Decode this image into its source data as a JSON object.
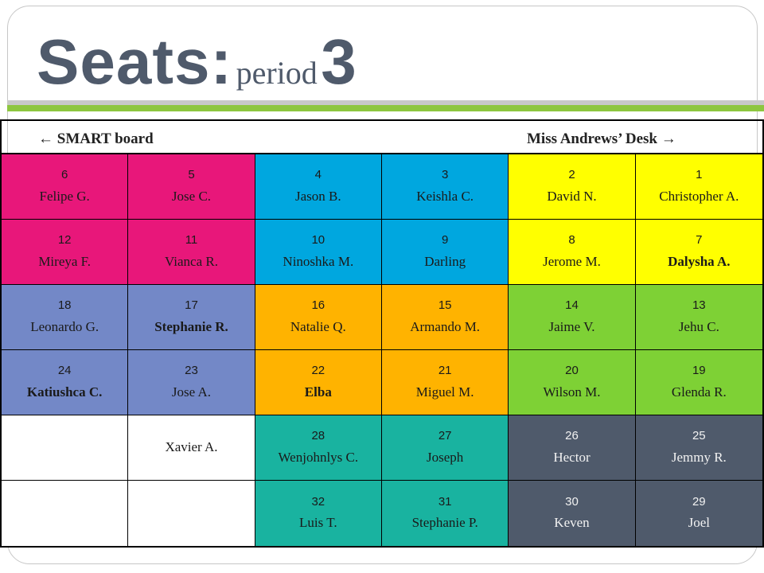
{
  "title": {
    "word": "Seats:",
    "sub": "period",
    "number": "3"
  },
  "front": {
    "left": "← SMART board",
    "right": "Miss Andrews’ Desk →"
  },
  "colors": {
    "pink": "#e8177a",
    "blue": "#00a7df",
    "yellow": "#ffff00",
    "periwinkle": "#7388c7",
    "orange": "#ffb300",
    "green": "#7ed135",
    "teal": "#19b3a0",
    "slate": "#4f5a6b",
    "white": "#ffffff"
  },
  "rows": [
    [
      {
        "num": "6",
        "name": "Felipe G.",
        "color": "pink"
      },
      {
        "num": "5",
        "name": "Jose C.",
        "color": "pink"
      },
      {
        "num": "4",
        "name": "Jason B.",
        "color": "blue"
      },
      {
        "num": "3",
        "name": "Keishla C.",
        "color": "blue"
      },
      {
        "num": "2",
        "name": "David N.",
        "color": "yellow"
      },
      {
        "num": "1",
        "name": "Christopher  A.",
        "color": "yellow"
      }
    ],
    [
      {
        "num": "12",
        "name": "Mireya F.",
        "color": "pink"
      },
      {
        "num": "11",
        "name": "Vianca R.",
        "color": "pink"
      },
      {
        "num": "10",
        "name": "Ninoshka M.",
        "color": "blue"
      },
      {
        "num": "9",
        "name": "Darling",
        "color": "blue"
      },
      {
        "num": "8",
        "name": "Jerome M.",
        "color": "yellow"
      },
      {
        "num": "7",
        "name": "Dalysha A.",
        "color": "yellow",
        "bold": true
      }
    ],
    [
      {
        "num": "18",
        "name": "Leonardo G.",
        "color": "periwinkle"
      },
      {
        "num": "17",
        "name": "Stephanie R.",
        "color": "periwinkle",
        "bold": true
      },
      {
        "num": "16",
        "name": "Natalie Q.",
        "color": "orange"
      },
      {
        "num": "15",
        "name": "Armando M.",
        "color": "orange"
      },
      {
        "num": "14",
        "name": "Jaime V.",
        "color": "green"
      },
      {
        "num": "13",
        "name": "Jehu C.",
        "color": "green"
      }
    ],
    [
      {
        "num": "24",
        "name": "Katiushca C.",
        "color": "periwinkle",
        "bold": true
      },
      {
        "num": "23",
        "name": "Jose A.",
        "color": "periwinkle"
      },
      {
        "num": "22",
        "name": "Elba",
        "color": "orange",
        "bold": true
      },
      {
        "num": "21",
        "name": "Miguel M.",
        "color": "orange"
      },
      {
        "num": "20",
        "name": "Wilson M.",
        "color": "green"
      },
      {
        "num": "19",
        "name": "Glenda R.",
        "color": "green"
      }
    ],
    [
      {
        "num": "",
        "name": "",
        "color": "white"
      },
      {
        "num": "",
        "name": "Xavier A.",
        "color": "white"
      },
      {
        "num": "28",
        "name": "Wenjohnlys C.",
        "color": "teal"
      },
      {
        "num": "27",
        "name": "Joseph",
        "color": "teal"
      },
      {
        "num": "26",
        "name": "Hector",
        "color": "slate"
      },
      {
        "num": "25",
        "name": "Jemmy R.",
        "color": "slate"
      }
    ],
    [
      {
        "num": "",
        "name": "",
        "color": "white"
      },
      {
        "num": "",
        "name": "",
        "color": "white"
      },
      {
        "num": "32",
        "name": "Luis T.",
        "color": "teal"
      },
      {
        "num": "31",
        "name": "Stephanie P.",
        "color": "teal"
      },
      {
        "num": "30",
        "name": "Keven",
        "color": "slate"
      },
      {
        "num": "29",
        "name": "Joel",
        "color": "slate"
      }
    ]
  ]
}
